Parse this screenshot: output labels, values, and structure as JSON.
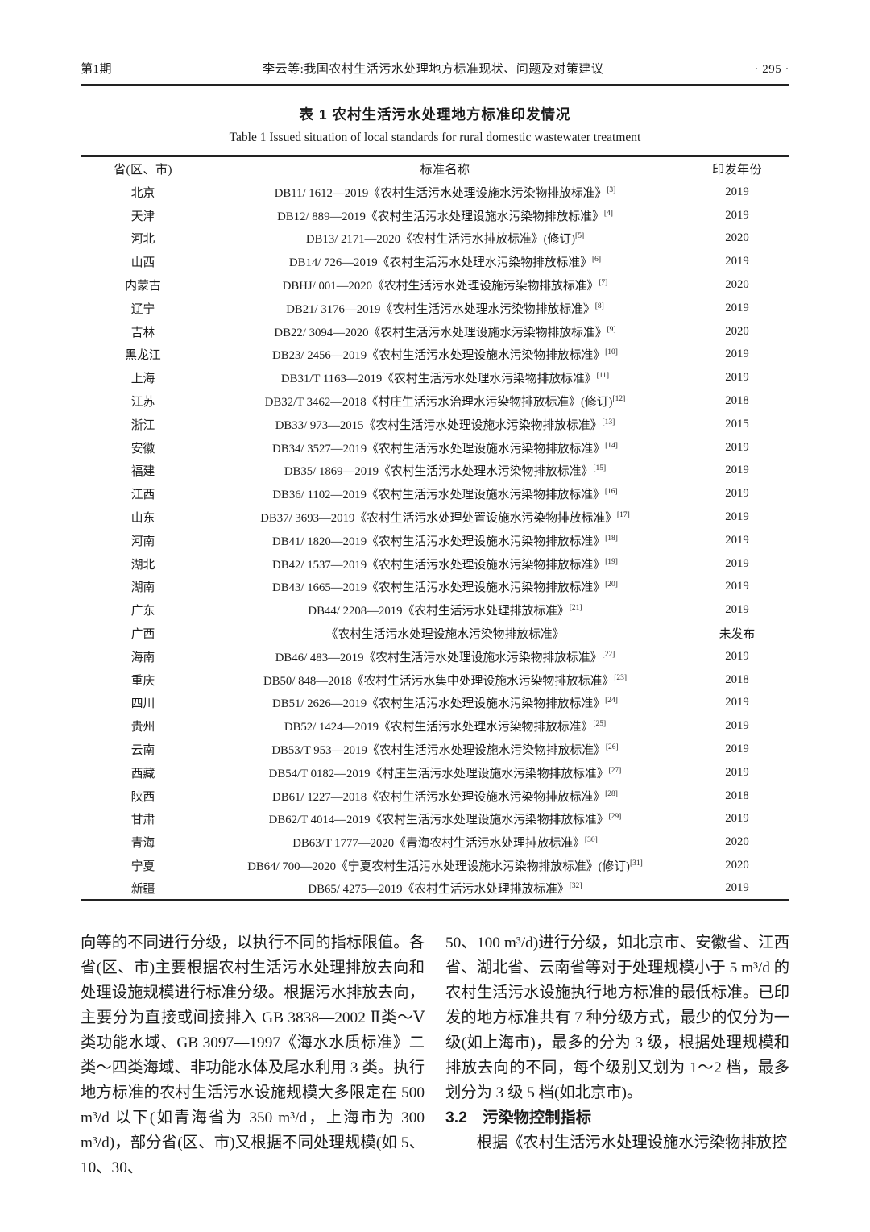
{
  "header": {
    "issue_label": "第1期",
    "running_title": "李云等:我国农村生活污水处理地方标准现状、问题及对策建议",
    "page_number": "· 295 ·"
  },
  "table": {
    "caption_zh": "表 1  农村生活污水处理地方标准印发情况",
    "caption_en": "Table 1   Issued situation of local standards for rural domestic wastewater treatment",
    "columns": [
      "省(区、市)",
      "标准名称",
      "印发年份"
    ],
    "rows": [
      {
        "province": "北京",
        "standard": "DB11/ 1612—2019《农村生活污水处理设施水污染物排放标准》",
        "ref": "[3]",
        "year": "2019"
      },
      {
        "province": "天津",
        "standard": "DB12/ 889—2019《农村生活污水处理设施水污染物排放标准》",
        "ref": "[4]",
        "year": "2019"
      },
      {
        "province": "河北",
        "standard": "DB13/ 2171—2020《农村生活污水排放标准》(修订)",
        "ref": "[5]",
        "year": "2020"
      },
      {
        "province": "山西",
        "standard": "DB14/ 726—2019《农村生活污水处理水污染物排放标准》",
        "ref": "[6]",
        "year": "2019"
      },
      {
        "province": "内蒙古",
        "standard": "DBHJ/ 001—2020《农村生活污水处理设施污染物排放标准》",
        "ref": "[7]",
        "year": "2020"
      },
      {
        "province": "辽宁",
        "standard": "DB21/ 3176—2019《农村生活污水处理水污染物排放标准》",
        "ref": "[8]",
        "year": "2019"
      },
      {
        "province": "吉林",
        "standard": "DB22/ 3094—2020《农村生活污水处理设施水污染物排放标准》",
        "ref": "[9]",
        "year": "2020"
      },
      {
        "province": "黑龙江",
        "standard": "DB23/ 2456—2019《农村生活污水处理设施水污染物排放标准》",
        "ref": "[10]",
        "year": "2019"
      },
      {
        "province": "上海",
        "standard": "DB31/T 1163—2019《农村生活污水处理水污染物排放标准》",
        "ref": "[11]",
        "year": "2019"
      },
      {
        "province": "江苏",
        "standard": "DB32/T 3462—2018《村庄生活污水治理水污染物排放标准》(修订)",
        "ref": "[12]",
        "year": "2018"
      },
      {
        "province": "浙江",
        "standard": "DB33/ 973—2015《农村生活污水处理设施水污染物排放标准》",
        "ref": "[13]",
        "year": "2015"
      },
      {
        "province": "安徽",
        "standard": "DB34/ 3527—2019《农村生活污水处理设施水污染物排放标准》",
        "ref": "[14]",
        "year": "2019"
      },
      {
        "province": "福建",
        "standard": "DB35/ 1869—2019《农村生活污水处理水污染物排放标准》",
        "ref": "[15]",
        "year": "2019"
      },
      {
        "province": "江西",
        "standard": "DB36/ 1102—2019《农村生活污水处理设施水污染物排放标准》",
        "ref": "[16]",
        "year": "2019"
      },
      {
        "province": "山东",
        "standard": "DB37/ 3693—2019《农村生活污水处理处置设施水污染物排放标准》",
        "ref": "[17]",
        "year": "2019"
      },
      {
        "province": "河南",
        "standard": "DB41/ 1820—2019《农村生活污水处理设施水污染物排放标准》",
        "ref": "[18]",
        "year": "2019"
      },
      {
        "province": "湖北",
        "standard": "DB42/ 1537—2019《农村生活污水处理设施水污染物排放标准》",
        "ref": "[19]",
        "year": "2019"
      },
      {
        "province": "湖南",
        "standard": "DB43/ 1665—2019《农村生活污水处理设施水污染物排放标准》",
        "ref": "[20]",
        "year": "2019"
      },
      {
        "province": "广东",
        "standard": "DB44/ 2208—2019《农村生活污水处理排放标准》",
        "ref": "[21]",
        "year": "2019"
      },
      {
        "province": "广西",
        "standard": "《农村生活污水处理设施水污染物排放标准》",
        "ref": "",
        "year": "未发布"
      },
      {
        "province": "海南",
        "standard": "DB46/ 483—2019《农村生活污水处理设施水污染物排放标准》",
        "ref": "[22]",
        "year": "2019"
      },
      {
        "province": "重庆",
        "standard": "DB50/ 848—2018《农村生活污水集中处理设施水污染物排放标准》",
        "ref": "[23]",
        "year": "2018"
      },
      {
        "province": "四川",
        "standard": "DB51/ 2626—2019《农村生活污水处理设施水污染物排放标准》",
        "ref": "[24]",
        "year": "2019"
      },
      {
        "province": "贵州",
        "standard": "DB52/ 1424—2019《农村生活污水处理水污染物排放标准》",
        "ref": "[25]",
        "year": "2019"
      },
      {
        "province": "云南",
        "standard": "DB53/T 953—2019《农村生活污水处理设施水污染物排放标准》",
        "ref": "[26]",
        "year": "2019"
      },
      {
        "province": "西藏",
        "standard": "DB54/T 0182—2019《村庄生活污水处理设施水污染物排放标准》",
        "ref": "[27]",
        "year": "2019"
      },
      {
        "province": "陕西",
        "standard": "DB61/ 1227—2018《农村生活污水处理设施水污染物排放标准》",
        "ref": "[28]",
        "year": "2018"
      },
      {
        "province": "甘肃",
        "standard": "DB62/T 4014—2019《农村生活污水处理设施水污染物排放标准》",
        "ref": "[29]",
        "year": "2019"
      },
      {
        "province": "青海",
        "standard": "DB63/T 1777—2020《青海农村生活污水处理排放标准》",
        "ref": "[30]",
        "year": "2020"
      },
      {
        "province": "宁夏",
        "standard": "DB64/ 700—2020《宁夏农村生活污水处理设施水污染物排放标准》(修订)",
        "ref": "[31]",
        "year": "2020"
      },
      {
        "province": "新疆",
        "standard": "DB65/ 4275—2019《农村生活污水处理排放标准》",
        "ref": "[32]",
        "year": "2019"
      }
    ]
  },
  "body": {
    "left_paragraph": "向等的不同进行分级，以执行不同的指标限值。各省(区、市)主要根据农村生活污水处理排放去向和处理设施规模进行标准分级。根据污水排放去向，主要分为直接或间接排入 GB 3838—2002 Ⅱ类～Ⅴ类功能水域、GB 3097—1997《海水水质标准》二类～四类海域、非功能水体及尾水利用 3 类。执行地方标准的农村生活污水设施规模大多限定在 500 m³/d 以下(如青海省为 350 m³/d，上海市为 300 m³/d)，部分省(区、市)又根据不同处理规模(如 5、10、30、",
    "right_paragraph": "50、100 m³/d)进行分级，如北京市、安徽省、江西省、湖北省、云南省等对于处理规模小于 5 m³/d 的农村生活污水设施执行地方标准的最低标准。已印发的地方标准共有 7 种分级方式，最少的仅分为一级(如上海市)，最多的分为 3 级，根据处理规模和排放去向的不同，每个级别又划为 1～2 档，最多划分为 3 级 5 档(如北京市)。",
    "section_heading": "3.2　污染物控制指标",
    "section_paragraph": "根据《农村生活污水处理设施水污染物排放控"
  }
}
